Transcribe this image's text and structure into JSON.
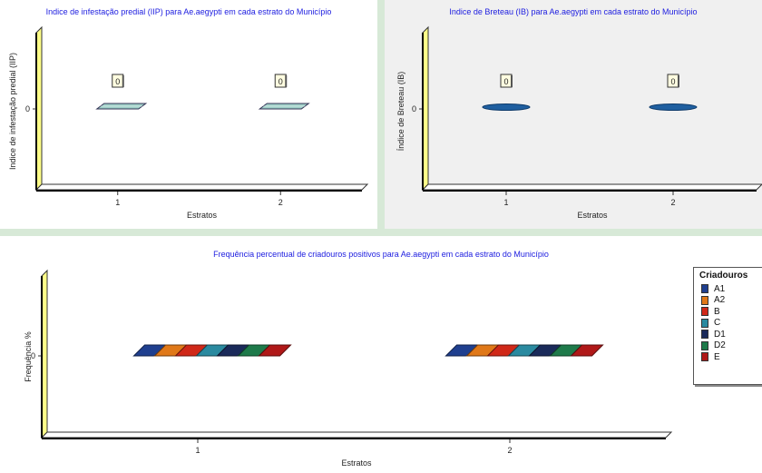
{
  "chart_data": [
    {
      "type": "bar",
      "title": "Indice de infestação predial (IIP) para Ae.aegypti em cada estrato do Município",
      "xlabel": "Estratos",
      "ylabel": "Indice de infestação predial (IIP)",
      "categories": [
        "1",
        "2"
      ],
      "values": [
        0,
        0
      ],
      "data_labels": [
        "0",
        "0"
      ],
      "y_tick_labels": [
        "0"
      ],
      "color": "#9ecfc7"
    },
    {
      "type": "bar",
      "title": "Indice de Breteau (IB) para Ae.aegypti em cada estrato do Município",
      "xlabel": "Estratos",
      "ylabel": "Índice de Breteau (IB)",
      "categories": [
        "1",
        "2"
      ],
      "values": [
        0,
        0
      ],
      "data_labels": [
        "0",
        "0"
      ],
      "y_tick_labels": [
        "0"
      ],
      "color": "#1f5fa0"
    },
    {
      "type": "bar",
      "title": "Frequência percentual de criadouros positivos para Ae.aegypti em cada estrato do Município",
      "xlabel": "Estratos",
      "ylabel": "Frequência %",
      "categories": [
        "1",
        "2"
      ],
      "y_tick_labels": [
        "0"
      ],
      "legend_title": "Criadouros",
      "legend_position": "right",
      "series": [
        {
          "name": "A1",
          "values": [
            0,
            0
          ],
          "color": "#1f3f8f"
        },
        {
          "name": "A2",
          "values": [
            0,
            0
          ],
          "color": "#e07818"
        },
        {
          "name": "B",
          "values": [
            0,
            0
          ],
          "color": "#d02818"
        },
        {
          "name": "C",
          "values": [
            0,
            0
          ],
          "color": "#2a8aa0"
        },
        {
          "name": "D1",
          "values": [
            0,
            0
          ],
          "color": "#1a2a5a"
        },
        {
          "name": "D2",
          "values": [
            0,
            0
          ],
          "color": "#1e7a4a"
        },
        {
          "name": "E",
          "values": [
            0,
            0
          ],
          "color": "#b01818"
        }
      ]
    }
  ]
}
